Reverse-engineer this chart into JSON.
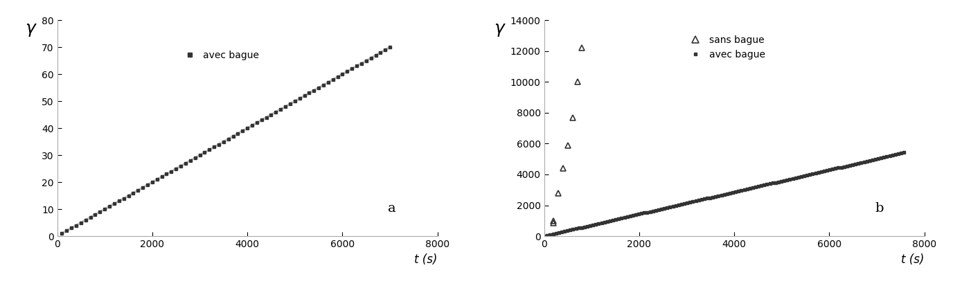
{
  "plot_a": {
    "avec_bague_t": [
      100,
      200,
      300,
      400,
      500,
      600,
      700,
      800,
      900,
      1000,
      1100,
      1200,
      1300,
      1400,
      1500,
      1600,
      1700,
      1800,
      1900,
      2000,
      2100,
      2200,
      2300,
      2400,
      2500,
      2600,
      2700,
      2800,
      2900,
      3000,
      3100,
      3200,
      3300,
      3400,
      3500,
      3600,
      3700,
      3800,
      3900,
      4000,
      4100,
      4200,
      4300,
      4400,
      4500,
      4600,
      4700,
      4800,
      4900,
      5000,
      5100,
      5200,
      5300,
      5400,
      5500,
      5600,
      5700,
      5800,
      5900,
      6000,
      6100,
      6200,
      6300,
      6400,
      6500,
      6600,
      6700,
      6800,
      6900,
      7000
    ],
    "avec_bague_y": [
      1.0,
      2.0,
      3.0,
      4.0,
      5.0,
      6.0,
      7.0,
      8.0,
      9.0,
      10.0,
      11.0,
      12.0,
      13.0,
      14.0,
      15.0,
      16.0,
      17.0,
      18.0,
      19.0,
      20.0,
      21.0,
      22.0,
      23.0,
      24.0,
      25.0,
      26.0,
      27.0,
      28.0,
      29.0,
      30.0,
      31.0,
      32.0,
      33.0,
      34.0,
      35.0,
      36.0,
      37.0,
      38.0,
      39.0,
      40.0,
      41.0,
      42.0,
      43.0,
      44.0,
      45.0,
      46.0,
      47.0,
      48.0,
      49.0,
      50.0,
      51.0,
      52.0,
      53.0,
      54.0,
      55.0,
      56.0,
      57.0,
      58.0,
      59.0,
      60.0,
      61.0,
      62.0,
      63.0,
      64.0,
      65.0,
      66.0,
      67.0,
      68.0,
      69.0,
      70.0
    ],
    "xlim": [
      0,
      8000
    ],
    "ylim": [
      0,
      80
    ],
    "xticks": [
      0,
      2000,
      4000,
      6000,
      8000
    ],
    "yticks": [
      0,
      10,
      20,
      30,
      40,
      50,
      60,
      70,
      80
    ],
    "xlabel": "t (s)",
    "ylabel": "γ",
    "legend_label": "avec bague",
    "label_a": "a"
  },
  "plot_b": {
    "sans_bague_t": [
      200,
      300,
      400,
      500,
      600,
      700,
      800,
      200
    ],
    "sans_bague_y": [
      850,
      2800,
      4400,
      5900,
      7700,
      10000,
      12200,
      1000
    ],
    "avec_bague_t_start": 10,
    "avec_bague_slope": 0.715,
    "xlim": [
      0,
      8000
    ],
    "ylim": [
      0,
      14000
    ],
    "xticks": [
      0,
      2000,
      4000,
      6000,
      8000
    ],
    "yticks": [
      0,
      2000,
      4000,
      6000,
      8000,
      10000,
      12000,
      14000
    ],
    "xlabel": "t (s)",
    "ylabel": "γ",
    "legend_sans": "sans bague",
    "legend_avec": "avec bague",
    "label_b": "b"
  },
  "marker_color": "#333333",
  "line_color": "#c8c8c8",
  "bg_color": "#ffffff",
  "fontsize_label": 12,
  "fontsize_tick": 10,
  "fontsize_legend": 10,
  "fontsize_gamma": 18,
  "fontsize_ab": 14
}
